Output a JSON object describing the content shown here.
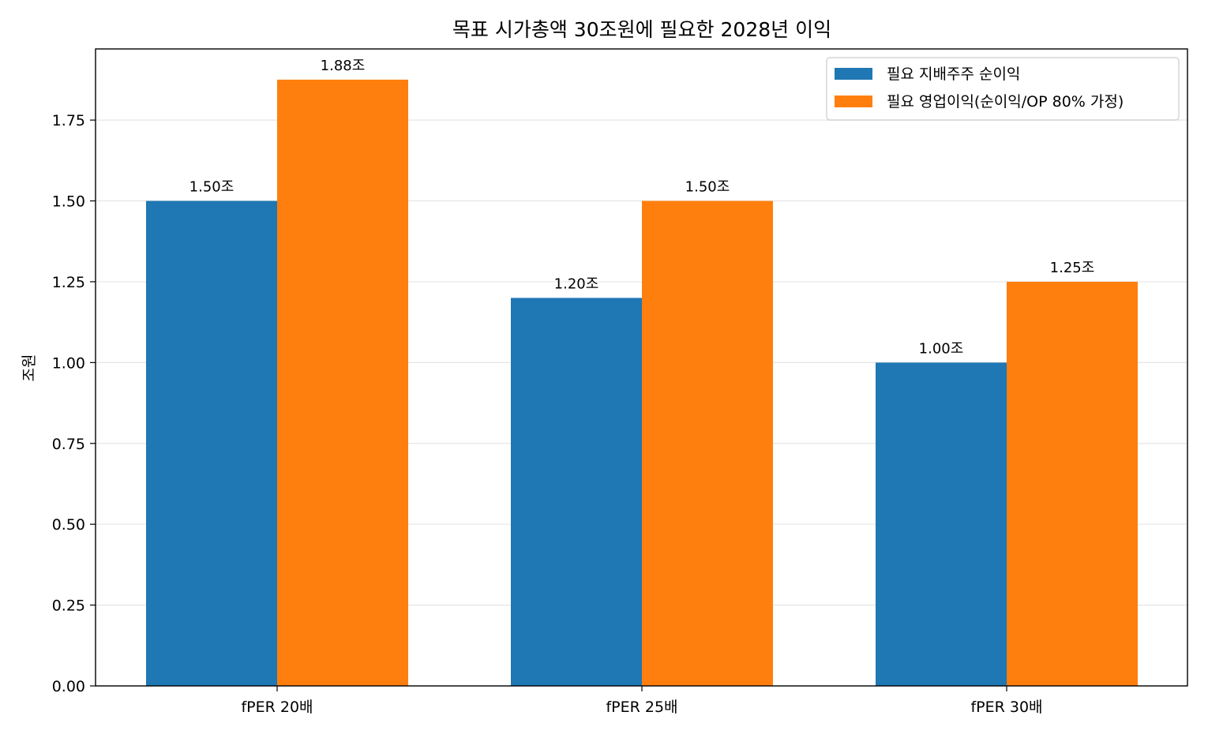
{
  "chart_data": {
    "type": "bar",
    "title": "목표 시가총액 30조원에 필요한 2028년 이익",
    "xlabel": "",
    "ylabel": "조원",
    "categories": [
      "fPER 20배",
      "fPER 25배",
      "fPER 30배"
    ],
    "series": [
      {
        "name": "필요 지배주주 순이익",
        "color": "#1f77b4",
        "values": [
          1.5,
          1.2,
          1.0
        ],
        "labels": [
          "1.50조",
          "1.20조",
          "1.00조"
        ]
      },
      {
        "name": "필요 영업이익(순이익/OP 80% 가정)",
        "color": "#ff7f0e",
        "values": [
          1.875,
          1.5,
          1.25
        ],
        "labels": [
          "1.88조",
          "1.50조",
          "1.25조"
        ]
      }
    ],
    "ylim": [
      0,
      1.97
    ],
    "yticks": [
      "0.00",
      "0.25",
      "0.50",
      "0.75",
      "1.00",
      "1.25",
      "1.50",
      "1.75"
    ],
    "grid": "y",
    "legend": "top-right"
  }
}
